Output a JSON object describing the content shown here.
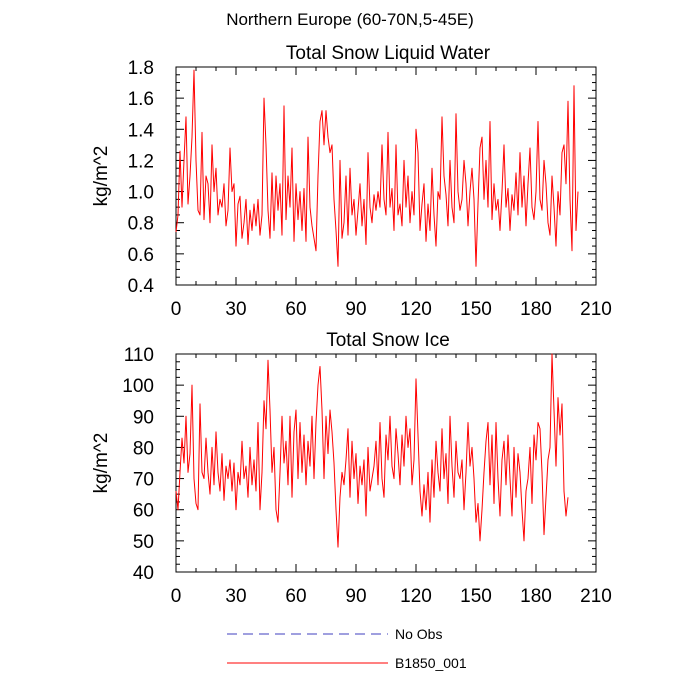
{
  "title": "Northern Europe (60-70N,5-45E)",
  "colors": {
    "model": "#ff0000",
    "obs": "#3f3fbf",
    "axis": "#000000"
  },
  "legend": [
    {
      "name": "No Obs",
      "style": "dashed",
      "color": "#3f3fbf"
    },
    {
      "name": "B1850_001",
      "style": "solid",
      "color": "#ff0000"
    }
  ],
  "chart_data": [
    {
      "type": "line",
      "title": "Total Snow Liquid Water",
      "ylabel": "kg/m^2",
      "xlabel": "",
      "xlim": [
        0,
        210
      ],
      "ylim": [
        0.4,
        1.8
      ],
      "xticks": [
        "0",
        "30",
        "60",
        "90",
        "120",
        "150",
        "180",
        "210"
      ],
      "yticks": [
        "0.4",
        "0.6",
        "0.8",
        "1.0",
        "1.2",
        "1.4",
        "1.6",
        "1.8"
      ],
      "grid": false,
      "series": [
        {
          "name": "B1850_001",
          "x_start": 0,
          "x_step": 1,
          "values": [
            0.74,
            0.85,
            1.26,
            0.9,
            1.2,
            1.48,
            0.92,
            1.1,
            1.35,
            1.78,
            1.2,
            0.88,
            0.85,
            1.38,
            0.82,
            1.1,
            1.05,
            0.8,
            1.3,
            1.0,
            1.15,
            0.85,
            0.95,
            0.9,
            1.05,
            0.78,
            0.88,
            1.28,
            1.0,
            1.05,
            0.65,
            0.92,
            0.97,
            0.7,
            0.8,
            0.95,
            0.66,
            0.88,
            0.75,
            0.92,
            0.78,
            0.95,
            0.72,
            0.85,
            1.6,
            1.3,
            0.88,
            0.7,
            1.12,
            0.75,
            1.1,
            0.88,
            1.05,
            0.72,
            1.55,
            0.82,
            1.1,
            0.9,
            1.28,
            0.68,
            1.05,
            0.82,
            1.0,
            0.75,
            1.02,
            0.68,
            1.35,
            0.9,
            0.78,
            0.7,
            0.62,
            1.1,
            1.45,
            1.52,
            1.3,
            1.52,
            1.35,
            1.25,
            1.3,
            0.95,
            0.75,
            0.52,
            1.2,
            0.7,
            0.8,
            1.1,
            0.72,
            1.15,
            0.85,
            0.95,
            0.72,
            0.88,
            1.05,
            0.78,
            0.95,
            0.66,
            1.25,
            0.9,
            0.8,
            0.98,
            0.88,
            1.0,
            0.9,
            1.3,
            0.95,
            0.85,
            1.38,
            0.9,
            1.02,
            0.75,
            1.3,
            0.85,
            0.92,
            0.78,
            1.2,
            0.9,
            1.1,
            0.8,
            1.0,
            0.85,
            1.4,
            1.25,
            0.75,
            0.92,
            1.05,
            0.68,
            0.92,
            0.75,
            1.15,
            0.85,
            0.65,
            1.0,
            0.95,
            1.48,
            1.1,
            0.98,
            0.78,
            1.2,
            0.9,
            0.8,
            1.5,
            1.0,
            0.88,
            0.95,
            1.2,
            1.05,
            0.78,
            1.0,
            1.15,
            0.95,
            0.52,
            0.92,
            1.28,
            1.35,
            0.95,
            1.2,
            0.9,
            1.45,
            0.82,
            1.05,
            0.88,
            0.95,
            0.75,
            1.0,
            1.3,
            0.9,
            1.02,
            0.75,
            0.98,
            0.88,
            1.12,
            0.85,
            1.25,
            0.9,
            1.1,
            0.78,
            1.05,
            1.28,
            0.9,
            0.82,
            1.0,
            1.45,
            0.95,
            0.88,
            1.2,
            1.05,
            0.8,
            0.72,
            1.1,
            0.9,
            0.65,
            1.0,
            0.85,
            1.25,
            1.3,
            1.05,
            1.58,
            0.95,
            0.62,
            1.68,
            0.75,
            1.0
          ]
        }
      ]
    },
    {
      "type": "line",
      "title": "Total Snow Ice",
      "ylabel": "kg/m^2",
      "xlabel": "",
      "xlim": [
        0,
        210
      ],
      "ylim": [
        40,
        110
      ],
      "xticks": [
        "0",
        "30",
        "60",
        "90",
        "120",
        "150",
        "180",
        "210"
      ],
      "yticks": [
        "40",
        "50",
        "60",
        "70",
        "80",
        "90",
        "100",
        "110"
      ],
      "grid": false,
      "series": [
        {
          "name": "B1850_001",
          "x_start": 0,
          "x_step": 1,
          "values": [
            66,
            60,
            72,
            83,
            75,
            90,
            72,
            78,
            100,
            70,
            62,
            60,
            94,
            72,
            70,
            83,
            72,
            65,
            80,
            68,
            85,
            72,
            66,
            78,
            63,
            74,
            70,
            76,
            66,
            75,
            60,
            72,
            68,
            82,
            70,
            74,
            64,
            80,
            68,
            76,
            66,
            88,
            60,
            72,
            95,
            86,
            108,
            92,
            72,
            80,
            60,
            56,
            72,
            90,
            75,
            82,
            68,
            90,
            64,
            85,
            92,
            70,
            88,
            72,
            84,
            68,
            82,
            74,
            90,
            70,
            88,
            100,
            106,
            92,
            70,
            90,
            78,
            92,
            85,
            75,
            60,
            48,
            64,
            72,
            68,
            76,
            86,
            64,
            82,
            70,
            78,
            62,
            74,
            68,
            76,
            58,
            80,
            66,
            70,
            74,
            82,
            68,
            88,
            70,
            64,
            84,
            76,
            90,
            74,
            70,
            86,
            78,
            68,
            84,
            74,
            90,
            80,
            86,
            68,
            76,
            102,
            84,
            66,
            58,
            68,
            60,
            72,
            56,
            76,
            64,
            82,
            72,
            66,
            86,
            70,
            78,
            62,
            90,
            74,
            64,
            82,
            72,
            70,
            76,
            60,
            72,
            88,
            74,
            80,
            70,
            56,
            62,
            50,
            60,
            72,
            82,
            88,
            68,
            84,
            62,
            88,
            70,
            58,
            76,
            82,
            68,
            84,
            70,
            58,
            80,
            64,
            78,
            72,
            60,
            50,
            66,
            70,
            80,
            62,
            84,
            76,
            88,
            86,
            72,
            52,
            64,
            76,
            80,
            110,
            92,
            74,
            96,
            84,
            94,
            66,
            58,
            64
          ]
        }
      ]
    }
  ]
}
